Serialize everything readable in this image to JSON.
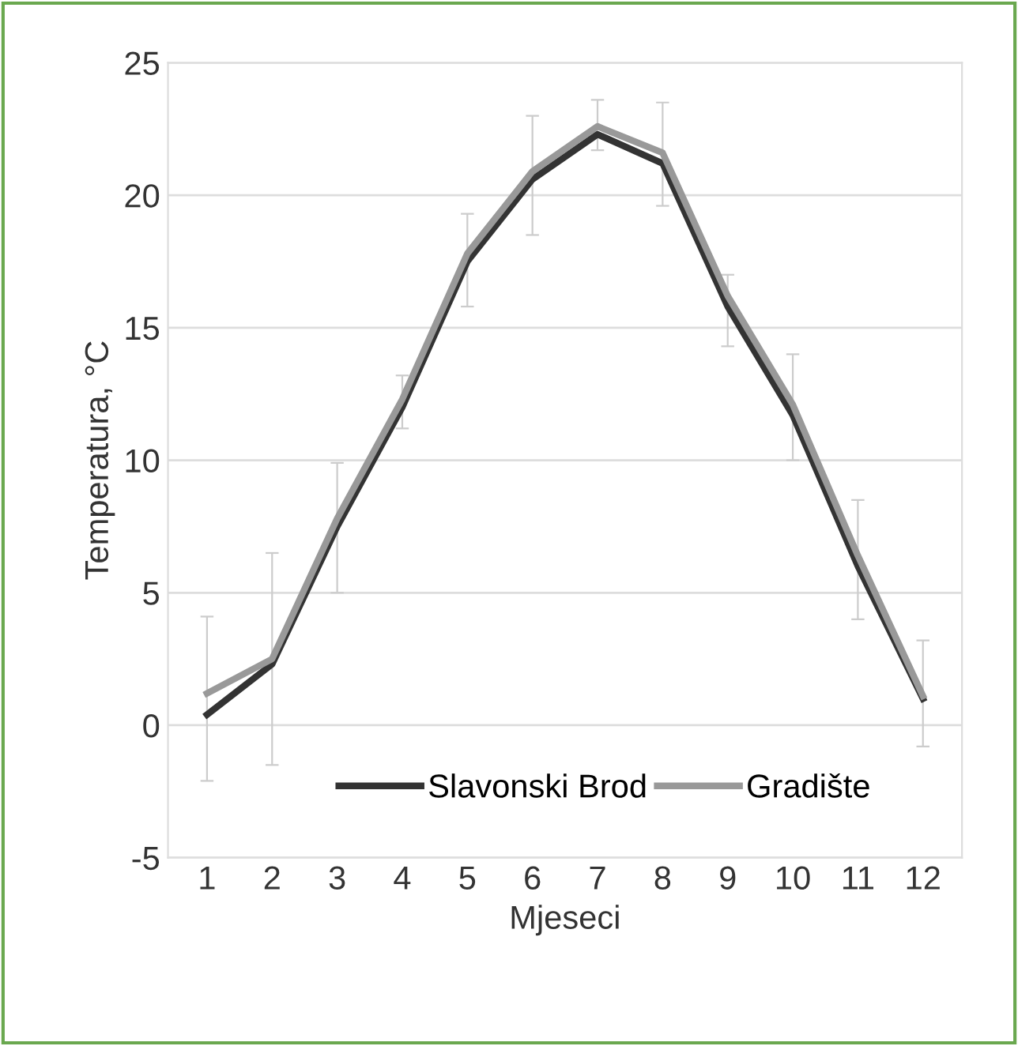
{
  "chart_data": {
    "type": "line",
    "xlabel": "Mjeseci",
    "ylabel": "Temperatura, °C",
    "categories": [
      "1",
      "2",
      "3",
      "4",
      "5",
      "6",
      "7",
      "8",
      "9",
      "10",
      "11",
      "12"
    ],
    "series": [
      {
        "name": "Slavonski Brod",
        "color": "#333333",
        "values": [
          0.4,
          2.3,
          7.5,
          12.0,
          17.5,
          20.6,
          22.3,
          21.2,
          15.8,
          11.7,
          6.0,
          1.0
        ],
        "errors": [
          [
            -2.1,
            4.1
          ],
          [
            -1.5,
            6.5
          ],
          [
            5.0,
            9.9
          ],
          [
            11.2,
            13.2
          ],
          [
            15.8,
            19.3
          ],
          [
            18.5,
            23.0
          ],
          [
            21.7,
            23.6
          ],
          [
            19.6,
            23.5
          ],
          [
            14.3,
            17.0
          ],
          [
            10.0,
            14.0
          ],
          [
            4.0,
            8.5
          ],
          [
            -0.8,
            3.2
          ]
        ]
      },
      {
        "name": "Gradište",
        "color": "#999999",
        "values": [
          1.2,
          2.5,
          7.8,
          12.3,
          17.8,
          20.9,
          22.6,
          21.6,
          16.2,
          12.1,
          6.4,
          1.1
        ]
      }
    ],
    "ylim": [
      -5,
      25
    ],
    "yticks": [
      -5,
      0,
      5,
      10,
      15,
      20,
      25
    ],
    "grid": "y",
    "legend": "bottom",
    "marker": "none",
    "line_style": "solid"
  }
}
